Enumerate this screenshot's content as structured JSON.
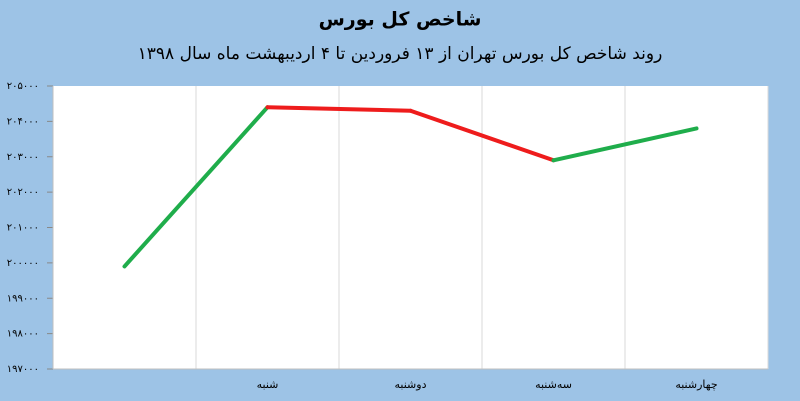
{
  "chart_data": {
    "type": "line",
    "title": "شاخص کل بورس",
    "subtitle": "روند شاخص کل بورس تهران از ۱۳ فروردین تا ۴ اردیبهشت ماه سال ۱۳۹۸",
    "categories": [
      null,
      "شنبه",
      "دوشنبه",
      "سه‌شنبه",
      "چهارشنبه"
    ],
    "values": [
      199900,
      204400,
      204300,
      202900,
      203800
    ],
    "up_color": "#1fad4b",
    "down_color": "#ee1c1c",
    "ylim": [
      197000,
      205000
    ],
    "yticks": [
      {
        "value": 197000,
        "label": "۱۹۷۰۰۰"
      },
      {
        "value": 198000,
        "label": "۱۹۸۰۰۰"
      },
      {
        "value": 199000,
        "label": "۱۹۹۰۰۰"
      },
      {
        "value": 200000,
        "label": "۲۰۰۰۰۰"
      },
      {
        "value": 201000,
        "label": "۲۰۱۰۰۰"
      },
      {
        "value": 202000,
        "label": "۲۰۲۰۰۰"
      },
      {
        "value": 203000,
        "label": "۲۰۳۰۰۰"
      },
      {
        "value": 204000,
        "label": "۲۰۴۰۰۰"
      },
      {
        "value": 205000,
        "label": "۲۰۵۰۰۰"
      }
    ],
    "grid": true
  }
}
